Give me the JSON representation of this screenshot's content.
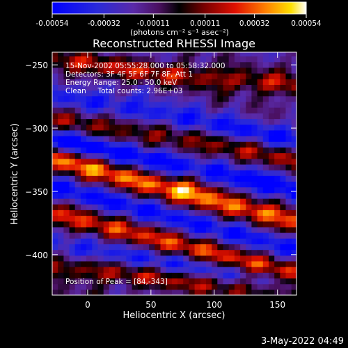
{
  "chart_data": {
    "type": "heatmap",
    "title": "Reconstructed RHESSI Image",
    "xlabel": "Heliocentric X (arcsec)",
    "ylabel": "Heliocentric Y (arcsec)",
    "xlim": [
      -28,
      165
    ],
    "ylim": [
      -432,
      -240
    ],
    "x_ticks": [
      0,
      50,
      100,
      150
    ],
    "y_ticks": [
      -250,
      -300,
      -350,
      -400
    ],
    "colorbar": {
      "ticks": [
        -0.00054,
        -0.00032,
        -0.00011,
        0.00011,
        0.00032,
        0.00054
      ],
      "tick_labels": [
        "-0.00054",
        "-0.00032",
        "-0.00011",
        "0.00011",
        "0.00032",
        "0.00054"
      ],
      "unit_label": "(photons cm⁻² s⁻¹ asec⁻²)",
      "range": [
        -0.00054,
        0.00054
      ]
    },
    "annotations": [
      "15-Nov-2002 05:55:28.000 to 05:58:32.000",
      "Detectors: 3F 4F 5F 6F 7F 8F, Att 1",
      "Energy Range: 25.0 - 50.0 keV",
      "Clean     Total counts: 2.96E+03"
    ],
    "peak_label": "Position of Peak = [84,-343]",
    "peak": [
      84,
      -343
    ],
    "bands": [
      {
        "x0": -28,
        "y0": -291,
        "slope": -0.18,
        "amp": 0.0003
      },
      {
        "x0": -28,
        "y0": -323,
        "slope": -0.26,
        "amp": 0.00054
      },
      {
        "x0": -28,
        "y0": -368,
        "slope": -0.24,
        "amp": 0.0004
      },
      {
        "x0": -28,
        "y0": -410,
        "slope": -0.1,
        "amp": 0.00032
      },
      {
        "x0": -28,
        "y0": -440,
        "slope": -0.06,
        "amp": 0.0002
      },
      {
        "x0": 60,
        "y0": -256,
        "slope": -0.1,
        "amp": 0.00034
      }
    ],
    "troughs": [
      {
        "x0": -28,
        "y0": -272,
        "slope": -0.2,
        "amp": -0.0003
      },
      {
        "x0": -28,
        "y0": -307,
        "slope": -0.22,
        "amp": -0.00045
      },
      {
        "x0": -28,
        "y0": -346,
        "slope": -0.25,
        "amp": -0.0003
      },
      {
        "x0": -28,
        "y0": -392,
        "slope": -0.17,
        "amp": -0.00025
      }
    ]
  },
  "timestamp": "3-May-2022 04:49"
}
